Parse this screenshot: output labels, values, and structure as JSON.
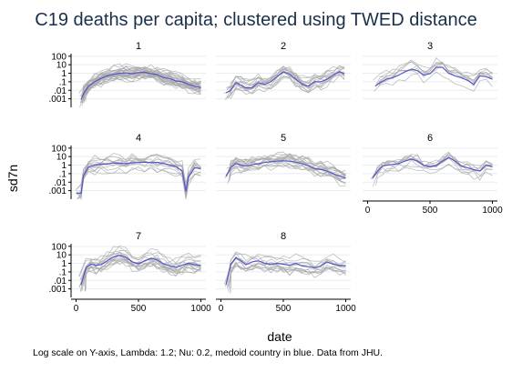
{
  "chart_data": {
    "type": "line",
    "title": "C19 deaths per capita; clustered using TWED distance",
    "xlabel": "date",
    "ylabel": "sd7n",
    "note": "Log scale on Y-axis, Lambda: 1.2; Nu: 0.2, medoid country in blue. Data from JHU.",
    "y_scale": "log",
    "ylim": [
      0.0001,
      200
    ],
    "xlim": [
      -40,
      1040
    ],
    "y_ticks": [
      {
        "value": 100,
        "label": "100"
      },
      {
        "value": 10,
        "label": "10"
      },
      {
        "value": 1,
        "label": "1"
      },
      {
        "value": 0.1,
        "label": ".1"
      },
      {
        "value": 0.01,
        "label": ".01"
      },
      {
        "value": 0.001,
        "label": ".001"
      }
    ],
    "x_ticks": [
      {
        "value": 0,
        "label": "0"
      },
      {
        "value": 500,
        "label": "500"
      },
      {
        "value": 1000,
        "label": "1000"
      }
    ],
    "colors": {
      "medoid": "#5555cc",
      "members": "#a8a8a8",
      "panel_bg": "#ffffff",
      "grid": "#e6eef2",
      "title": "#1a2f4a",
      "header_text": "#000000"
    },
    "grid": true,
    "panels": [
      {
        "label": "1",
        "member_count": 28,
        "medoid": [
          [
            40,
            0.0008
          ],
          [
            60,
            0.004
          ],
          [
            100,
            0.03
          ],
          [
            150,
            0.1
          ],
          [
            200,
            0.25
          ],
          [
            250,
            0.5
          ],
          [
            300,
            0.7
          ],
          [
            350,
            1.0
          ],
          [
            400,
            1.1
          ],
          [
            450,
            0.9
          ],
          [
            500,
            1.2
          ],
          [
            550,
            1.3
          ],
          [
            600,
            0.9
          ],
          [
            650,
            0.7
          ],
          [
            700,
            0.3
          ],
          [
            750,
            0.25
          ],
          [
            800,
            0.12
          ],
          [
            850,
            0.1
          ],
          [
            900,
            0.05
          ],
          [
            950,
            0.03
          ],
          [
            1000,
            0.02
          ]
        ]
      },
      {
        "label": "2",
        "member_count": 14,
        "medoid": [
          [
            40,
            0.005
          ],
          [
            80,
            0.01
          ],
          [
            120,
            0.08
          ],
          [
            160,
            0.04
          ],
          [
            200,
            0.02
          ],
          [
            250,
            0.02
          ],
          [
            300,
            0.08
          ],
          [
            350,
            0.05
          ],
          [
            400,
            0.1
          ],
          [
            450,
            0.4
          ],
          [
            500,
            1.5
          ],
          [
            550,
            0.8
          ],
          [
            600,
            0.2
          ],
          [
            650,
            0.05
          ],
          [
            700,
            0.03
          ],
          [
            750,
            0.1
          ],
          [
            800,
            0.1
          ],
          [
            850,
            0.2
          ],
          [
            900,
            0.6
          ],
          [
            950,
            1.5
          ],
          [
            990,
            0.9
          ]
        ]
      },
      {
        "label": "3",
        "member_count": 8,
        "medoid": [
          [
            60,
            0.03
          ],
          [
            100,
            0.08
          ],
          [
            150,
            0.2
          ],
          [
            200,
            0.3
          ],
          [
            250,
            0.6
          ],
          [
            300,
            1.5
          ],
          [
            350,
            3.0
          ],
          [
            400,
            2.0
          ],
          [
            450,
            0.6
          ],
          [
            500,
            0.9
          ],
          [
            550,
            5.0
          ],
          [
            600,
            5.0
          ],
          [
            650,
            1.0
          ],
          [
            700,
            0.5
          ],
          [
            750,
            0.3
          ],
          [
            800,
            0.15
          ],
          [
            850,
            0.05
          ],
          [
            900,
            0.5
          ],
          [
            950,
            0.4
          ],
          [
            1000,
            0.2
          ]
        ]
      },
      {
        "label": "4",
        "member_count": 12,
        "medoid": [
          [
            0,
            0.0005
          ],
          [
            40,
            0.0005
          ],
          [
            60,
            0.06
          ],
          [
            100,
            0.6
          ],
          [
            150,
            1.0
          ],
          [
            200,
            1.3
          ],
          [
            250,
            1.4
          ],
          [
            300,
            1.8
          ],
          [
            350,
            1.6
          ],
          [
            400,
            1.5
          ],
          [
            450,
            1.9
          ],
          [
            500,
            2.0
          ],
          [
            550,
            2.2
          ],
          [
            600,
            1.9
          ],
          [
            650,
            2.1
          ],
          [
            700,
            1.6
          ],
          [
            750,
            1.0
          ],
          [
            800,
            0.7
          ],
          [
            850,
            0.2
          ],
          [
            880,
            0.0008
          ],
          [
            900,
            0.04
          ],
          [
            950,
            0.5
          ],
          [
            1000,
            0.4
          ]
        ]
      },
      {
        "label": "5",
        "member_count": 16,
        "medoid": [
          [
            40,
            0.05
          ],
          [
            80,
            0.5
          ],
          [
            120,
            1.5
          ],
          [
            160,
            1.0
          ],
          [
            200,
            0.8
          ],
          [
            250,
            1.1
          ],
          [
            300,
            1.5
          ],
          [
            350,
            2.0
          ],
          [
            400,
            2.5
          ],
          [
            450,
            3.0
          ],
          [
            500,
            3.2
          ],
          [
            550,
            3.0
          ],
          [
            600,
            2.2
          ],
          [
            650,
            1.5
          ],
          [
            700,
            0.8
          ],
          [
            750,
            0.4
          ],
          [
            800,
            0.3
          ],
          [
            850,
            0.2
          ],
          [
            900,
            0.1
          ],
          [
            950,
            0.05
          ],
          [
            1000,
            0.03
          ]
        ]
      },
      {
        "label": "6",
        "member_count": 9,
        "medoid": [
          [
            40,
            0.03
          ],
          [
            80,
            0.2
          ],
          [
            120,
            0.8
          ],
          [
            160,
            1.0
          ],
          [
            200,
            1.2
          ],
          [
            250,
            1.5
          ],
          [
            300,
            3.0
          ],
          [
            350,
            5.0
          ],
          [
            400,
            3.0
          ],
          [
            450,
            0.9
          ],
          [
            500,
            0.6
          ],
          [
            550,
            0.9
          ],
          [
            600,
            3.0
          ],
          [
            650,
            8.0
          ],
          [
            700,
            3.0
          ],
          [
            750,
            0.8
          ],
          [
            800,
            0.5
          ],
          [
            850,
            0.3
          ],
          [
            900,
            0.2
          ],
          [
            950,
            1.0
          ],
          [
            1000,
            0.6
          ]
        ]
      },
      {
        "label": "7",
        "member_count": 16,
        "medoid": [
          [
            40,
            0.003
          ],
          [
            80,
            0.3
          ],
          [
            120,
            0.8
          ],
          [
            160,
            0.6
          ],
          [
            200,
            0.7
          ],
          [
            250,
            2.0
          ],
          [
            300,
            6.0
          ],
          [
            350,
            9.0
          ],
          [
            400,
            5.0
          ],
          [
            450,
            1.5
          ],
          [
            500,
            0.9
          ],
          [
            550,
            2.0
          ],
          [
            600,
            4.0
          ],
          [
            650,
            2.5
          ],
          [
            700,
            0.9
          ],
          [
            750,
            0.5
          ],
          [
            800,
            0.35
          ],
          [
            850,
            0.6
          ],
          [
            900,
            1.0
          ],
          [
            950,
            0.7
          ],
          [
            1000,
            0.6
          ]
        ]
      },
      {
        "label": "8",
        "member_count": 12,
        "medoid": [
          [
            40,
            0.003
          ],
          [
            80,
            0.8
          ],
          [
            120,
            5.0
          ],
          [
            160,
            2.0
          ],
          [
            200,
            0.7
          ],
          [
            250,
            1.5
          ],
          [
            300,
            2.0
          ],
          [
            350,
            1.0
          ],
          [
            400,
            0.8
          ],
          [
            450,
            1.0
          ],
          [
            500,
            0.8
          ],
          [
            550,
            0.6
          ],
          [
            600,
            1.0
          ],
          [
            650,
            0.5
          ],
          [
            700,
            0.4
          ],
          [
            750,
            0.3
          ],
          [
            800,
            0.5
          ],
          [
            850,
            1.5
          ],
          [
            900,
            0.8
          ],
          [
            950,
            0.6
          ],
          [
            1000,
            0.5
          ]
        ]
      }
    ]
  }
}
